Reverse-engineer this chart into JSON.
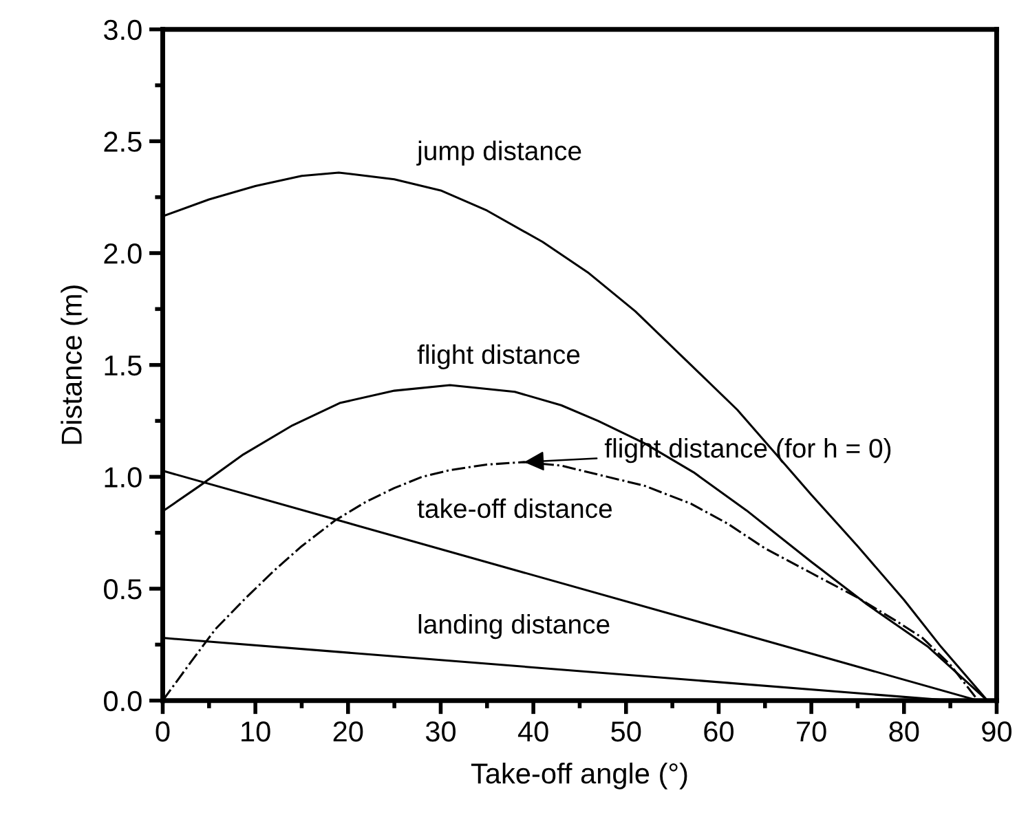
{
  "chart_data": {
    "type": "line",
    "xlabel": "Take-off angle (°)",
    "ylabel": "Distance (m)",
    "xlim": [
      0,
      90
    ],
    "xticks": [
      0,
      10,
      20,
      30,
      40,
      50,
      60,
      70,
      80,
      90
    ],
    "ylim": [
      0,
      3.0
    ],
    "yticks": [
      {
        "value": 0,
        "label": "0.0"
      },
      0.5,
      {
        "value": 1,
        "label": "1.0"
      },
      1.5,
      {
        "value": 2,
        "label": "2.0"
      },
      2.5,
      {
        "value": 3,
        "label": "3.0"
      }
    ],
    "grid": false,
    "marker": "none",
    "series": [
      {
        "name": "jump distance",
        "color": "#000000",
        "line_style": "solid",
        "x": [
          0,
          5,
          10,
          15,
          19,
          25,
          30,
          35,
          41,
          46,
          51,
          57,
          62,
          66,
          70,
          75,
          80,
          84,
          89
        ],
        "values": [
          2.165,
          2.24,
          2.3,
          2.345,
          2.36,
          2.33,
          2.28,
          2.19,
          2.05,
          1.91,
          1.74,
          1.5,
          1.3,
          1.11,
          0.92,
          0.69,
          0.45,
          0.24,
          0
        ]
      },
      {
        "name": "flight distance",
        "color": "#000000",
        "line_style": "solid",
        "x": [
          0,
          4,
          8.7,
          14,
          19.1,
          25,
          31,
          38,
          43,
          47,
          52,
          57.3,
          63,
          70,
          76,
          82.6,
          89
        ],
        "values": [
          0.846,
          0.96,
          1.1,
          1.23,
          1.33,
          1.385,
          1.41,
          1.38,
          1.32,
          1.25,
          1.15,
          1.02,
          0.85,
          0.62,
          0.43,
          0.24,
          0
        ]
      },
      {
        "color": "#000000",
        "line_style": "dashdot",
        "x": [
          0,
          3,
          5.7,
          9,
          12,
          15,
          18.6,
          22,
          25,
          28,
          31,
          35,
          39,
          43,
          48,
          52,
          57,
          61,
          65,
          70,
          75,
          79,
          82,
          85,
          88
        ],
        "values": [
          0,
          0.17,
          0.32,
          0.46,
          0.58,
          0.69,
          0.805,
          0.89,
          0.95,
          1.0,
          1.03,
          1.055,
          1.066,
          1.05,
          1.0,
          0.96,
          0.88,
          0.79,
          0.68,
          0.57,
          0.46,
          0.36,
          0.28,
          0.16,
          0
        ]
      },
      {
        "name": "take-off distance",
        "color": "#000000",
        "line_style": "solid",
        "x": [
          0,
          88
        ],
        "values": [
          1.027,
          0
        ]
      },
      {
        "name": "landing distance",
        "color": "#000000",
        "line_style": "solid",
        "x": [
          0,
          85
        ],
        "values": [
          0.28,
          0
        ]
      }
    ],
    "annotations": [
      "flight distance (for h = 0)"
    ]
  }
}
